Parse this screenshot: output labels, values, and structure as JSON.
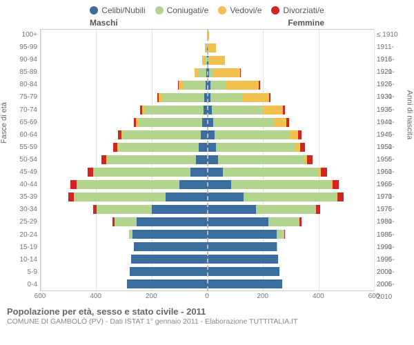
{
  "legend": [
    {
      "label": "Celibi/Nubili",
      "color": "#3b6e9e"
    },
    {
      "label": "Coniugati/e",
      "color": "#b3d48e"
    },
    {
      "label": "Vedovi/e",
      "color": "#f2c04f"
    },
    {
      "label": "Divorziati/e",
      "color": "#d32424"
    }
  ],
  "header_left": "Maschi",
  "header_right": "Femmine",
  "y_label_left": "Fasce di età",
  "y_label_right": "Anni di nascita",
  "age_labels": [
    "100+",
    "95-99",
    "90-94",
    "85-89",
    "80-84",
    "75-79",
    "70-74",
    "65-69",
    "60-64",
    "55-59",
    "50-54",
    "45-49",
    "40-44",
    "35-39",
    "30-34",
    "25-29",
    "20-24",
    "15-19",
    "10-14",
    "5-9",
    "0-4"
  ],
  "birth_labels": [
    "≤ 1910",
    "1911-1915",
    "1916-1920",
    "1921-1925",
    "1926-1930",
    "1931-1935",
    "1936-1940",
    "1941-1945",
    "1946-1950",
    "1951-1955",
    "1956-1960",
    "1961-1965",
    "1966-1970",
    "1971-1975",
    "1976-1980",
    "1981-1985",
    "1986-1990",
    "1991-1995",
    "1996-2000",
    "2001-2005",
    "2006-2010"
  ],
  "x_ticks": [
    -600,
    -400,
    -200,
    0,
    200,
    400,
    600
  ],
  "x_max": 600,
  "colors": {
    "celibi": "#3b6e9e",
    "coniugati": "#b3d48e",
    "vedovi": "#f2c04f",
    "divorziati": "#d32424",
    "grid": "#e5e5e5",
    "border": "#cccccc",
    "bg": "#ffffff"
  },
  "rows": [
    {
      "m": {
        "c": 0,
        "co": 0,
        "v": 2,
        "d": 0
      },
      "f": {
        "c": 0,
        "co": 0,
        "v": 6,
        "d": 0
      }
    },
    {
      "m": {
        "c": 2,
        "co": 2,
        "v": 6,
        "d": 0
      },
      "f": {
        "c": 2,
        "co": 0,
        "v": 30,
        "d": 0
      }
    },
    {
      "m": {
        "c": 2,
        "co": 6,
        "v": 10,
        "d": 0
      },
      "f": {
        "c": 4,
        "co": 4,
        "v": 55,
        "d": 0
      }
    },
    {
      "m": {
        "c": 4,
        "co": 28,
        "v": 14,
        "d": 0
      },
      "f": {
        "c": 6,
        "co": 18,
        "v": 95,
        "d": 2
      }
    },
    {
      "m": {
        "c": 6,
        "co": 80,
        "v": 18,
        "d": 2
      },
      "f": {
        "c": 10,
        "co": 55,
        "v": 120,
        "d": 4
      }
    },
    {
      "m": {
        "c": 10,
        "co": 150,
        "v": 16,
        "d": 4
      },
      "f": {
        "c": 12,
        "co": 115,
        "v": 95,
        "d": 6
      }
    },
    {
      "m": {
        "c": 14,
        "co": 210,
        "v": 12,
        "d": 6
      },
      "f": {
        "c": 16,
        "co": 185,
        "v": 70,
        "d": 8
      }
    },
    {
      "m": {
        "c": 18,
        "co": 230,
        "v": 8,
        "d": 8
      },
      "f": {
        "c": 20,
        "co": 220,
        "v": 45,
        "d": 10
      }
    },
    {
      "m": {
        "c": 24,
        "co": 280,
        "v": 6,
        "d": 12
      },
      "f": {
        "c": 26,
        "co": 270,
        "v": 30,
        "d": 14
      }
    },
    {
      "m": {
        "c": 30,
        "co": 290,
        "v": 4,
        "d": 16
      },
      "f": {
        "c": 32,
        "co": 285,
        "v": 18,
        "d": 16
      }
    },
    {
      "m": {
        "c": 40,
        "co": 320,
        "v": 3,
        "d": 18
      },
      "f": {
        "c": 38,
        "co": 310,
        "v": 12,
        "d": 18
      }
    },
    {
      "m": {
        "c": 60,
        "co": 350,
        "v": 2,
        "d": 20
      },
      "f": {
        "c": 55,
        "co": 345,
        "v": 8,
        "d": 22
      }
    },
    {
      "m": {
        "c": 100,
        "co": 370,
        "v": 1,
        "d": 22
      },
      "f": {
        "c": 85,
        "co": 360,
        "v": 5,
        "d": 24
      }
    },
    {
      "m": {
        "c": 150,
        "co": 330,
        "v": 1,
        "d": 20
      },
      "f": {
        "c": 130,
        "co": 335,
        "v": 3,
        "d": 22
      }
    },
    {
      "m": {
        "c": 200,
        "co": 200,
        "v": 0,
        "d": 12
      },
      "f": {
        "c": 175,
        "co": 215,
        "v": 2,
        "d": 14
      }
    },
    {
      "m": {
        "c": 255,
        "co": 80,
        "v": 0,
        "d": 6
      },
      "f": {
        "c": 220,
        "co": 110,
        "v": 1,
        "d": 8
      }
    },
    {
      "m": {
        "c": 270,
        "co": 12,
        "v": 0,
        "d": 1
      },
      "f": {
        "c": 250,
        "co": 28,
        "v": 0,
        "d": 2
      }
    },
    {
      "m": {
        "c": 265,
        "co": 0,
        "v": 0,
        "d": 0
      },
      "f": {
        "c": 250,
        "co": 2,
        "v": 0,
        "d": 0
      }
    },
    {
      "m": {
        "c": 275,
        "co": 0,
        "v": 0,
        "d": 0
      },
      "f": {
        "c": 255,
        "co": 0,
        "v": 0,
        "d": 0
      }
    },
    {
      "m": {
        "c": 280,
        "co": 0,
        "v": 0,
        "d": 0
      },
      "f": {
        "c": 260,
        "co": 0,
        "v": 0,
        "d": 0
      }
    },
    {
      "m": {
        "c": 290,
        "co": 0,
        "v": 0,
        "d": 0
      },
      "f": {
        "c": 270,
        "co": 0,
        "v": 0,
        "d": 0
      }
    }
  ],
  "title": "Popolazione per età, sesso e stato civile - 2011",
  "subtitle": "COMUNE DI GAMBOLÒ (PV) - Dati ISTAT 1° gennaio 2011 - Elaborazione TUTTITALIA.IT"
}
